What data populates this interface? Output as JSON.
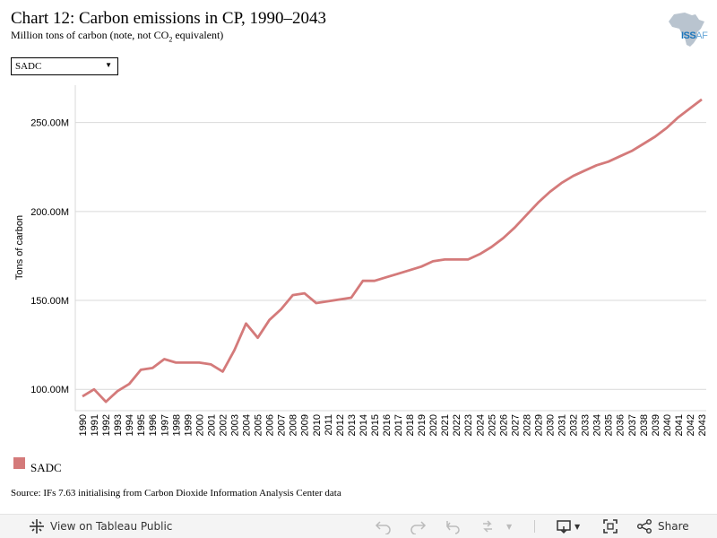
{
  "header": {
    "title": "Chart 12: Carbon emissions in CP, 1990–2043",
    "subtitle_pre": "Million tons of carbon (note, not CO",
    "subtitle_sub": "2",
    "subtitle_post": " equivalent)",
    "logo_text_bold": "ISS",
    "logo_text_light": "AF"
  },
  "filter": {
    "selected": "SADC"
  },
  "chart_data": {
    "type": "line",
    "title": "Chart 12: Carbon emissions in CP, 1990–2043",
    "xlabel": "",
    "ylabel": "Tons of carbon",
    "x": [
      "1990",
      "1991",
      "1992",
      "1993",
      "1994",
      "1995",
      "1996",
      "1997",
      "1998",
      "1999",
      "2000",
      "2001",
      "2002",
      "2003",
      "2004",
      "2005",
      "2006",
      "2007",
      "2008",
      "2009",
      "2010",
      "2011",
      "2012",
      "2013",
      "2014",
      "2015",
      "2016",
      "2017",
      "2018",
      "2019",
      "2020",
      "2021",
      "2022",
      "2023",
      "2024",
      "2025",
      "2026",
      "2027",
      "2028",
      "2029",
      "2030",
      "2031",
      "2032",
      "2033",
      "2034",
      "2035",
      "2036",
      "2037",
      "2038",
      "2039",
      "2040",
      "2041",
      "2042",
      "2043"
    ],
    "series": [
      {
        "name": "SADC",
        "color": "#d47a7a",
        "values": [
          96,
          100,
          93,
          99,
          103,
          111,
          112,
          117,
          115,
          115,
          115,
          114,
          110,
          122,
          137,
          129,
          139,
          145,
          153,
          154,
          148.5,
          149.5,
          150.5,
          151.5,
          161,
          161,
          163,
          165,
          167,
          169,
          172,
          173,
          173,
          173,
          176,
          180,
          185,
          191,
          198,
          205,
          211,
          216,
          220,
          223,
          226,
          228,
          231,
          234,
          238,
          242,
          247,
          253,
          258,
          263
        ]
      }
    ],
    "yticks": [
      {
        "value": 100,
        "label": "100.00M"
      },
      {
        "value": 150,
        "label": "150.00M"
      },
      {
        "value": 200,
        "label": "200.00M"
      },
      {
        "value": 250,
        "label": "250.00M"
      }
    ],
    "ylim": [
      88,
      271
    ],
    "grid": true,
    "legend": "bottom-left"
  },
  "legend": {
    "label": "SADC"
  },
  "source": "Source: IFs 7.63 initialising from Carbon Dioxide Information Analysis Center data",
  "toolbar": {
    "view_label": "View on Tableau Public",
    "share_label": "Share"
  }
}
